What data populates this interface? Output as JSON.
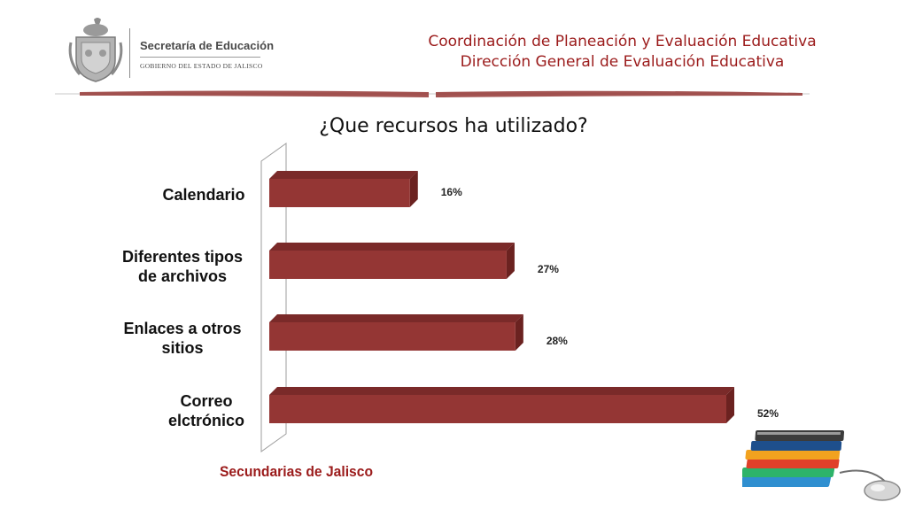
{
  "header": {
    "logo_title": "Secretaría de Educación",
    "logo_subtitle": "GOBIERNO DEL ESTADO DE JALISCO",
    "line1": "Coordinación de Planeación y Evaluación Educativa",
    "line2": "Dirección General de Evaluación Educativa"
  },
  "footer": {
    "label": "Secundarias de Jalisco"
  },
  "colors": {
    "bar": "#943634",
    "bar_top": "#7a2a29",
    "bar_side": "#6b2220",
    "accent_text": "#9b1b1b"
  },
  "chart_data": {
    "type": "bar",
    "orientation": "horizontal",
    "title": "¿Que recursos ha utilizado?",
    "categories": [
      [
        "Calendario"
      ],
      [
        "Diferentes tipos",
        "de archivos"
      ],
      [
        "Enlaces a otros",
        "sitios"
      ],
      [
        "Correo",
        "elctrónico"
      ]
    ],
    "values": [
      16,
      27,
      28,
      52
    ],
    "value_labels": [
      "16%",
      "27%",
      "28%",
      "52%"
    ],
    "xlim": [
      0,
      52
    ],
    "grid": false,
    "legend": "none"
  }
}
